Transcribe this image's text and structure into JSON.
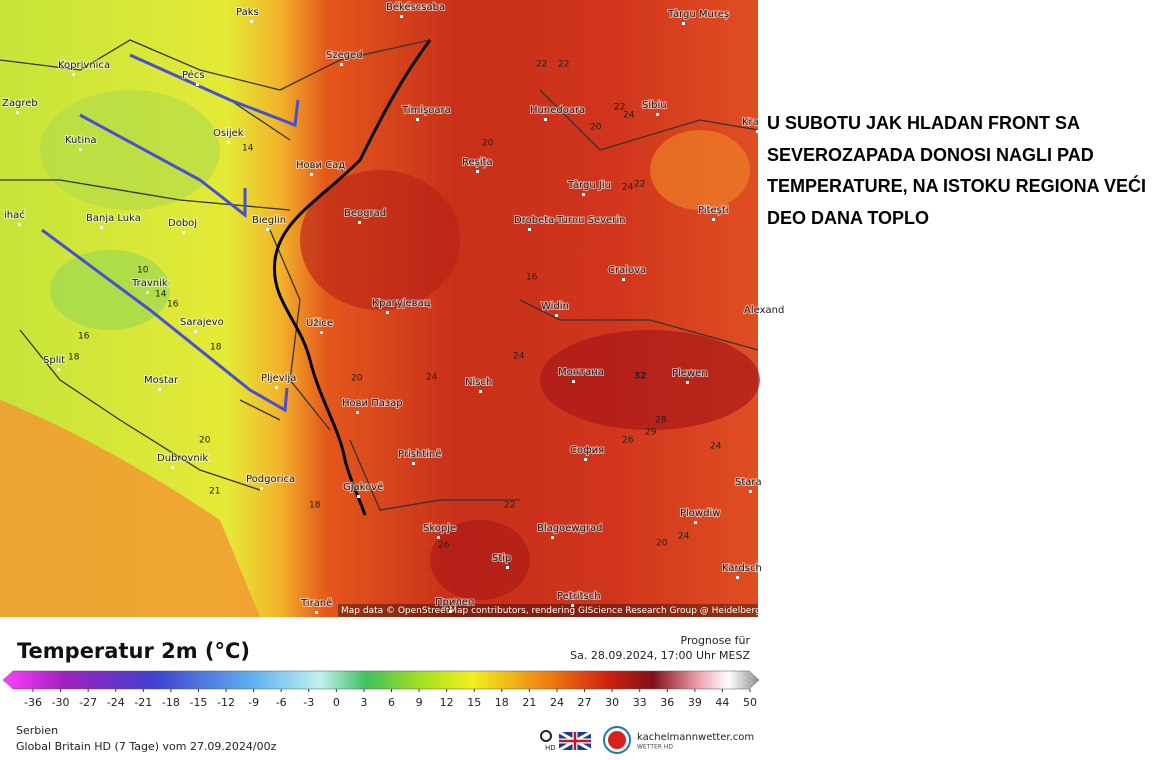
{
  "annotation": "U SUBOTU JAK HLADAN FRONT SA SEVEROZAPADA DONOSI NAGLI PAD TEMPERATURE, NA ISTOKU REGIONA VEĆI DEO DANA TOPLO",
  "map": {
    "cities": [
      "Paks",
      "Békéscsaba",
      "Târgu Mureș",
      "Koprivnica",
      "Pécs",
      "Szeged",
      "Zagreb",
      "Timișoara",
      "Hunedoara",
      "Sibiu",
      "Kutina",
      "Osijek",
      "Нови Сад",
      "Reșița",
      "Târgu Jiu",
      "Pitești",
      "Banja Luka",
      "Doboj",
      "Bieglin",
      "Beograd",
      "Drobeta-Turnu Severin",
      "ihać",
      "Craiova",
      "Travnik",
      "Sarajevo",
      "Крагујевац",
      "Užice",
      "Widin",
      "Alexand",
      "Split",
      "Mostar",
      "Pljevlja",
      "Монтана",
      "Plewen",
      "Нови Пазар",
      "Nisch",
      "София",
      "Dubrovnik",
      "Prishtinë",
      "Podgorica",
      "Gjakovë",
      "Stara",
      "Plowdiw",
      "Skopje",
      "Blagoewgrad",
      "Stip",
      "Kardsch",
      "Petritsch",
      "Tiranë",
      "Прилеп",
      "Kra"
    ],
    "contour_labels": [
      22,
      22,
      22,
      24,
      20,
      14,
      20,
      24,
      22,
      10,
      14,
      16,
      16,
      18,
      18,
      16,
      32,
      20,
      24,
      24,
      28,
      29,
      26,
      24,
      20,
      21,
      18,
      22,
      26,
      20,
      24
    ],
    "attribution": "Map data © OpenStreetMap contributors, rendering GIScience Research Group @ Heidelberg University"
  },
  "legend": {
    "title": "Temperatur 2m (°C)",
    "forecast_label": "Prognose für",
    "forecast_time": "Sa. 28.09.2024, 17:00 Uhr MESZ",
    "ticks": [
      -36,
      -30,
      -27,
      -24,
      -21,
      -18,
      -15,
      -12,
      -9,
      -6,
      -3,
      0,
      3,
      6,
      9,
      12,
      15,
      18,
      21,
      24,
      27,
      30,
      33,
      36,
      39,
      44,
      50
    ],
    "region": "Serbien",
    "model": "Global Britain HD (7 Tage) vom  27.09.2024/00z",
    "hd": "HD",
    "brand": "kachelmannwetter.com",
    "brand_sub": "WETTER HD"
  }
}
